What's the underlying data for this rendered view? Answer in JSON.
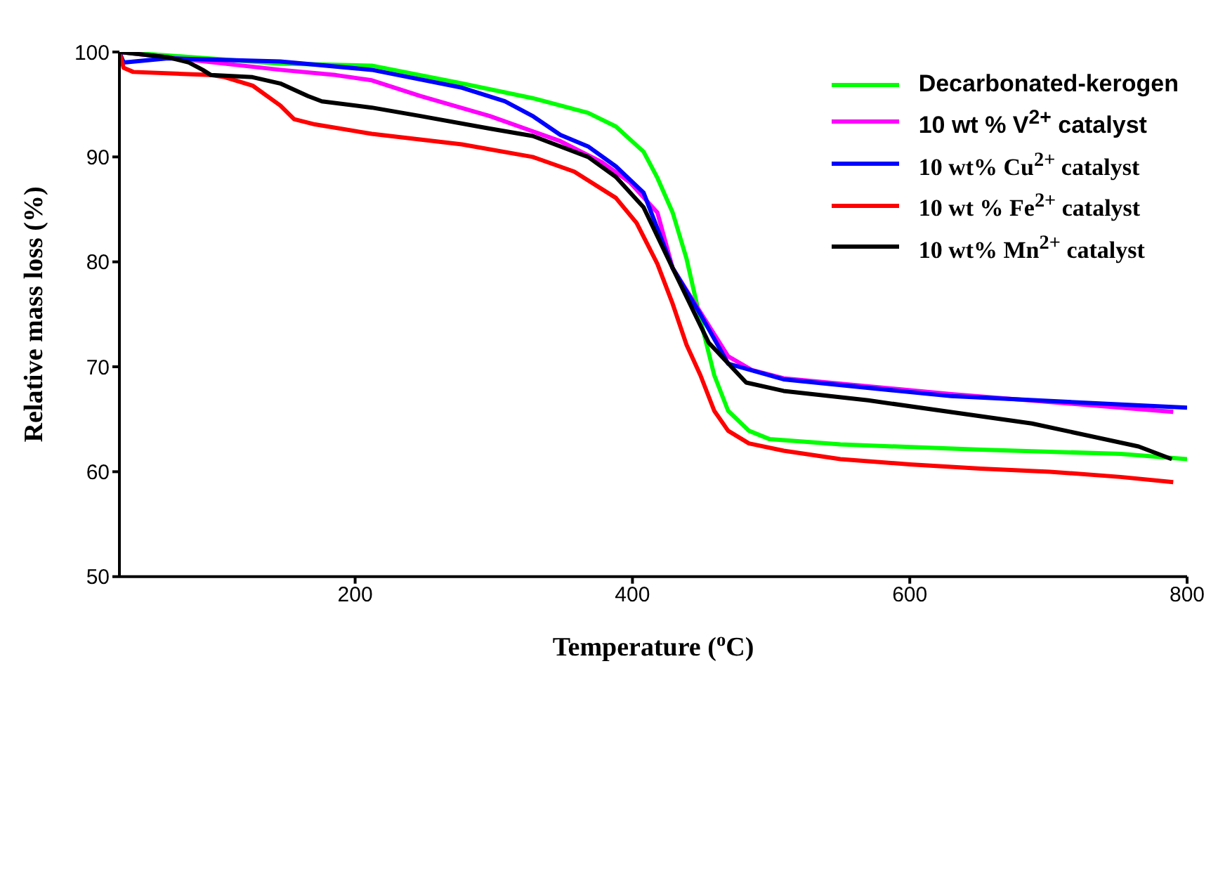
{
  "chart_data": {
    "type": "line",
    "xlabel": "Temperature ($^{o}$C)",
    "ylabel": "Relative mass loss (%)",
    "xlim": [
      30,
      800
    ],
    "xticks": [
      200,
      400,
      600,
      800
    ],
    "ylim": [
      50,
      100
    ],
    "yticks": [
      50,
      60,
      70,
      80,
      90,
      100
    ],
    "grid": false,
    "legend": "top right",
    "marker": "none",
    "line_style": "solid",
    "series": [
      {
        "name": "Decarbonated-kerogen",
        "color": "#00ff00",
        "x": [
          30,
          146,
          212,
          277,
          328,
          368,
          388,
          408,
          418,
          429,
          439,
          449,
          459,
          469,
          484,
          499,
          550,
          651,
          752,
          800
        ],
        "values": [
          100,
          98.9,
          98.7,
          97.0,
          95.6,
          94.2,
          92.9,
          90.5,
          88,
          84.7,
          80.3,
          74.5,
          69.2,
          65.8,
          63.9,
          63.1,
          62.6,
          62.1,
          61.7,
          61.2
        ]
      },
      {
        "name": "10 wt % V$^{2+}$ catalyst",
        "color": "#ff00ff",
        "x": [
          30,
          146,
          186,
          212,
          247,
          297,
          348,
          378,
          398,
          418,
          429,
          469,
          486,
          509,
          630,
          790
        ],
        "values": [
          100,
          98.3,
          97.8,
          97.3,
          95.8,
          93.9,
          91.5,
          89.5,
          87.6,
          84.7,
          79.4,
          71.0,
          69.7,
          68.9,
          67.4,
          65.7
        ]
      },
      {
        "name": "10 wt% Cu$^{2+}$ catalyst",
        "color": "#0000ff",
        "x": [
          30,
          33,
          65,
          146,
          212,
          277,
          308,
          328,
          348,
          368,
          388,
          408,
          429,
          449,
          469,
          509,
          630,
          800
        ],
        "values": [
          100,
          99.0,
          99.4,
          99.1,
          98.3,
          96.6,
          95.3,
          93.9,
          92.1,
          91.0,
          89.1,
          86.6,
          79.4,
          75.0,
          70.3,
          68.8,
          67.2,
          66.1
        ]
      },
      {
        "name": "10 wt % Fe$^{2+}$ catalyst",
        "color": "#ff0000",
        "x": [
          30,
          33,
          40,
          96,
          106,
          126,
          146,
          156,
          171,
          212,
          277,
          328,
          358,
          388,
          403,
          418,
          429,
          439,
          449,
          459,
          469,
          484,
          509,
          550,
          600,
          651,
          701,
          752,
          790
        ],
        "values": [
          100,
          98.5,
          98.1,
          97.8,
          97.6,
          96.8,
          94.9,
          93.6,
          93.1,
          92.2,
          91.2,
          90.0,
          88.6,
          86.1,
          83.7,
          79.8,
          76.0,
          72.1,
          69.2,
          65.8,
          63.9,
          62.7,
          62.0,
          61.2,
          60.7,
          60.3,
          60.0,
          59.5,
          59.0
        ]
      },
      {
        "name": "10 wt% Mn$^{2+}$ catalyst",
        "color": "#000000",
        "x": [
          30,
          65,
          80,
          90,
          96,
          126,
          146,
          166,
          176,
          212,
          247,
          297,
          328,
          368,
          388,
          408,
          429,
          455,
          482,
          509,
          570,
          688,
          765,
          789
        ],
        "values": [
          100,
          99.5,
          99.0,
          98.3,
          97.8,
          97.6,
          97.0,
          95.8,
          95.3,
          94.7,
          93.9,
          92.7,
          92.0,
          90.0,
          88.1,
          85.2,
          79.4,
          72.3,
          68.5,
          67.7,
          66.8,
          64.6,
          62.4,
          61.2
        ]
      }
    ]
  }
}
